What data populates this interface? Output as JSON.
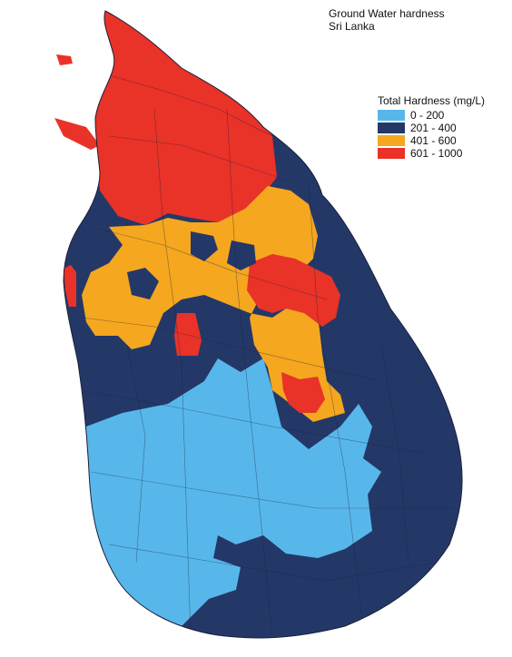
{
  "map": {
    "title_line1": "Ground Water hardness",
    "title_line2": "Sri Lanka"
  },
  "legend": {
    "title": "Total Hardness (mg/L)",
    "items": [
      {
        "label": "0 - 200",
        "color": "#58b7ea"
      },
      {
        "label": "201 - 400",
        "color": "#243868"
      },
      {
        "label": "401 - 600",
        "color": "#f4a71f"
      },
      {
        "label": "601 - 1000",
        "color": "#e93228"
      }
    ]
  },
  "colors": {
    "boundary": "#1a1f3a",
    "background": "#ffffff"
  }
}
